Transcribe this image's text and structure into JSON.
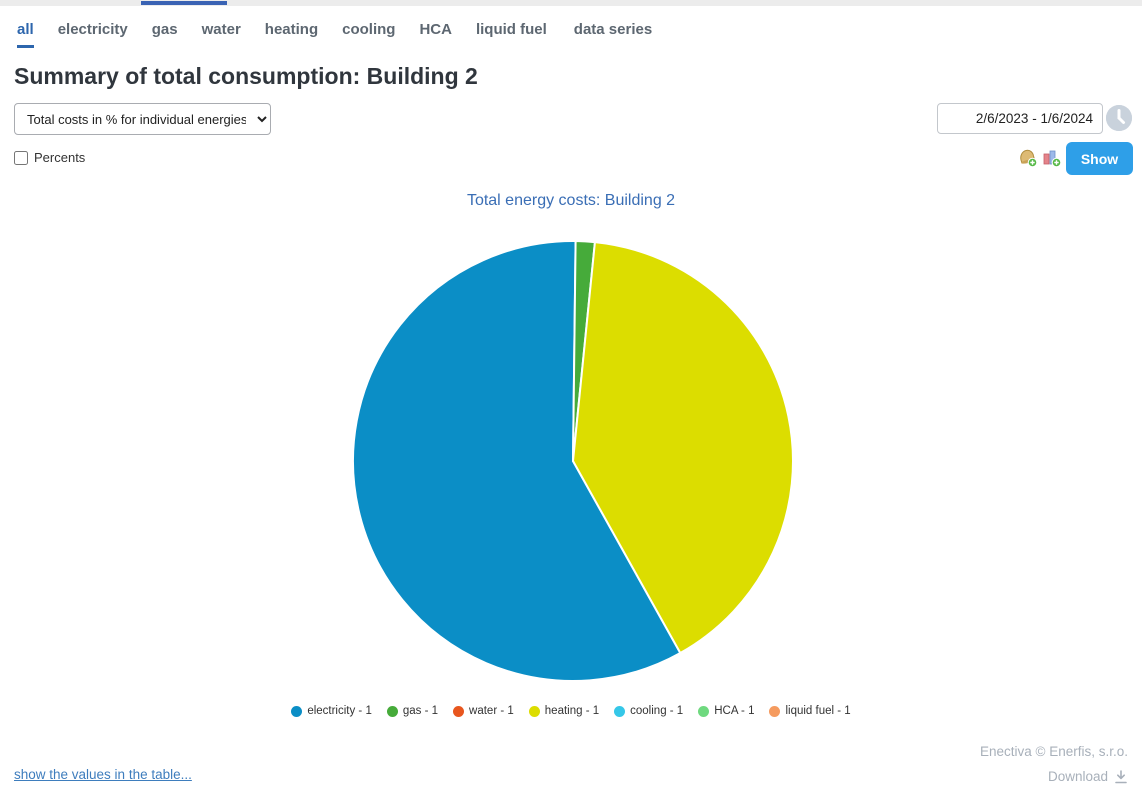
{
  "tabs": [
    {
      "label": "all",
      "active": true
    },
    {
      "label": "electricity",
      "active": false
    },
    {
      "label": "gas",
      "active": false
    },
    {
      "label": "water",
      "active": false
    },
    {
      "label": "heating",
      "active": false
    },
    {
      "label": "cooling",
      "active": false
    },
    {
      "label": "HCA",
      "active": false
    },
    {
      "label": "liquid fuel",
      "active": false
    },
    {
      "label": "data series",
      "active": false
    }
  ],
  "page": {
    "title": "Summary of total consumption: Building 2"
  },
  "controls": {
    "metric_select": {
      "value": "Total costs in % for individual energies"
    },
    "date_range": {
      "value": "2/6/2023 - 1/6/2024"
    },
    "percents_checkbox": {
      "label": "Percents",
      "checked": false
    },
    "show_button": {
      "label": "Show"
    },
    "icons": [
      "clock-icon",
      "add-alert-bell-icon",
      "add-chart-icon"
    ]
  },
  "chart_data": {
    "type": "pie",
    "title": "Total energy costs: Building 2",
    "legend_position": "bottom",
    "start_angle_deg": 150.8,
    "series": [
      {
        "name": "electricity",
        "legend_label": "electricity - 1",
        "color": "#0b8ec6",
        "percent": 58.3
      },
      {
        "name": "gas",
        "legend_label": "gas - 1",
        "color": "#46ab3a",
        "percent": 1.4
      },
      {
        "name": "water",
        "legend_label": "water - 1",
        "color": "#e8561e",
        "percent": 0
      },
      {
        "name": "heating",
        "legend_label": "heating - 1",
        "color": "#dcdd00",
        "percent": 40.3
      },
      {
        "name": "cooling",
        "legend_label": "cooling - 1",
        "color": "#35c7e8",
        "percent": 0
      },
      {
        "name": "HCA",
        "legend_label": "HCA - 1",
        "color": "#6fd97f",
        "percent": 0
      },
      {
        "name": "liquid fuel",
        "legend_label": "liquid fuel - 1",
        "color": "#f59b5f",
        "percent": 0
      }
    ]
  },
  "footer": {
    "table_link": "show the values in the table...",
    "credit": "Enectiva © Enerfis, s.r.o.",
    "download_label": "Download"
  },
  "colors": {
    "accent_blue": "#2e9fe8",
    "active_tab": "#2d66ad",
    "chart_title": "#3a6eb5",
    "scrollbar_thumb": "#3a63b4"
  }
}
